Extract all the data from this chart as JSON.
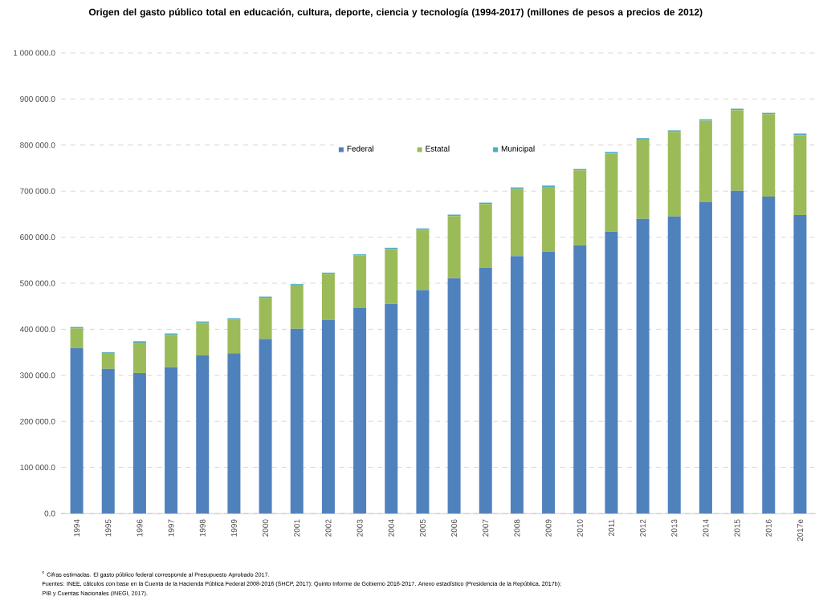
{
  "chart_data": {
    "type": "bar",
    "stacked": true,
    "title": "Origen del gasto público total en educación, cultura, deporte, ciencia y tecnología (1994-2017) (millones de pesos a precios de 2012)",
    "categories": [
      "1994",
      "1995",
      "1996",
      "1997",
      "1998",
      "1999",
      "2000",
      "2001",
      "2002",
      "2003",
      "2004",
      "2005",
      "2006",
      "2007",
      "2008",
      "2009",
      "2010",
      "2011",
      "2012",
      "2013",
      "2014",
      "2015",
      "2016",
      "2017e"
    ],
    "series": [
      {
        "name": "Federal",
        "color": "#4f81bd",
        "values": [
          359000,
          314000,
          305000,
          318000,
          343000,
          348000,
          379000,
          401000,
          420000,
          447000,
          455000,
          485000,
          511000,
          534000,
          559000,
          568000,
          582000,
          612000,
          640000,
          645000,
          677000,
          701000,
          688000,
          648000
        ]
      },
      {
        "name": "Estatal",
        "color": "#9bbb59",
        "values": [
          43000,
          33000,
          66000,
          70000,
          71000,
          73000,
          89000,
          94000,
          100000,
          113000,
          119000,
          131000,
          135000,
          138000,
          146000,
          141000,
          163000,
          170000,
          172000,
          184000,
          176000,
          175000,
          179000,
          174000
        ]
      },
      {
        "name": "Municipal",
        "color": "#4bacc6",
        "values": [
          3000,
          3000,
          3000,
          3000,
          3000,
          3000,
          3000,
          3000,
          3000,
          3000,
          3000,
          3000,
          3000,
          3000,
          3000,
          3000,
          3000,
          3000,
          3000,
          3000,
          3000,
          3000,
          3000,
          3000
        ]
      }
    ],
    "ylim": [
      0,
      1000000
    ],
    "yticks": [
      {
        "value": 0,
        "label": "0.0"
      },
      {
        "value": 100000,
        "label": "100 000.0"
      },
      {
        "value": 200000,
        "label": "200 000.0"
      },
      {
        "value": 300000,
        "label": "300 000.0"
      },
      {
        "value": 400000,
        "label": "400 000.0"
      },
      {
        "value": 500000,
        "label": "500 000.0"
      },
      {
        "value": 600000,
        "label": "600 000.0"
      },
      {
        "value": 700000,
        "label": "700 000.0"
      },
      {
        "value": 800000,
        "label": "800 000.0"
      },
      {
        "value": 900000,
        "label": "900 000.0"
      },
      {
        "value": 1000000,
        "label": "1 000 000.0"
      }
    ],
    "grid": "y",
    "legend": "top",
    "annotations": [
      "$^{e}$ Cifras estimadas. El gasto público federal corresponde al Presupuesto Aprobado 2017.",
      "Fuentes: INEE, cálculos con base en la Cuenta de la Hacienda Pública Federal 2008-2016 (SHCP, 2017); Quinto Informe de Gobierno 2016-2017. Anexo estadístico (Presidencia de la República, 2017b);",
      "PIB y Cuentas Nacionales (INEGI, 2017)."
    ]
  }
}
